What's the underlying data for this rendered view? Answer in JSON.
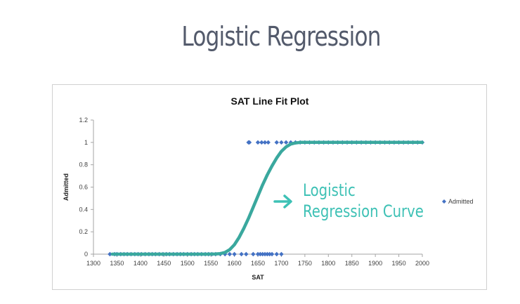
{
  "slide": {
    "title": "Logistic Regression"
  },
  "chart_data": {
    "type": "scatter",
    "title": "SAT Line Fit  Plot",
    "xlabel": "SAT",
    "ylabel": "Admitted",
    "xlim": [
      1300,
      2000
    ],
    "ylim": [
      0,
      1.2
    ],
    "xticks": [
      "1300",
      "1350",
      "1400",
      "1450",
      "1500",
      "1550",
      "1600",
      "1650",
      "1700",
      "1750",
      "1800",
      "1850",
      "1900",
      "1950",
      "2000"
    ],
    "yticks": [
      "0",
      "0.2",
      "0.4",
      "0.6",
      "0.8",
      "1",
      "1.2"
    ],
    "grid": false,
    "legend": {
      "position": "right",
      "entries": [
        "Admitted"
      ]
    },
    "series": [
      {
        "name": "Admitted",
        "kind": "points",
        "color": "#4472c4",
        "x": [
          1335,
          1345,
          1350,
          1358,
          1365,
          1372,
          1380,
          1388,
          1395,
          1402,
          1410,
          1418,
          1425,
          1432,
          1440,
          1448,
          1455,
          1462,
          1470,
          1478,
          1485,
          1492,
          1500,
          1508,
          1515,
          1522,
          1530,
          1538,
          1545,
          1552,
          1560,
          1570,
          1580,
          1590,
          1600,
          1615,
          1625,
          1640,
          1650,
          1655,
          1660,
          1665,
          1670,
          1675,
          1680,
          1690,
          1700,
          1630,
          1632,
          1650,
          1658,
          1665,
          1672,
          1690,
          1700,
          1710,
          1720,
          1730,
          1740,
          1750,
          1760,
          1770,
          1780,
          1790,
          1800,
          1810,
          1820,
          1830,
          1840,
          1850,
          1860,
          1870,
          1880,
          1890,
          1900,
          1910,
          1920,
          1930,
          1940,
          1950,
          1960,
          1970,
          1980,
          1990,
          2000
        ],
        "y": [
          0,
          0,
          0,
          0,
          0,
          0,
          0,
          0,
          0,
          0,
          0,
          0,
          0,
          0,
          0,
          0,
          0,
          0,
          0,
          0,
          0,
          0,
          0,
          0,
          0,
          0,
          0,
          0,
          0,
          0,
          0,
          0,
          0,
          0,
          0,
          0,
          0,
          0,
          0,
          0,
          0,
          0,
          0,
          0,
          0,
          0,
          0,
          1,
          1,
          1,
          1,
          1,
          1,
          1,
          1,
          1,
          1,
          1,
          1,
          1,
          1,
          1,
          1,
          1,
          1,
          1,
          1,
          1,
          1,
          1,
          1,
          1,
          1,
          1,
          1,
          1,
          1,
          1,
          1,
          1,
          1,
          1,
          1,
          1,
          1
        ]
      },
      {
        "name": "",
        "kind": "curve",
        "color": "#3aa89e",
        "x": [
          1340,
          1400,
          1450,
          1500,
          1540,
          1560,
          1570,
          1580,
          1590,
          1600,
          1610,
          1620,
          1630,
          1640,
          1650,
          1660,
          1670,
          1680,
          1690,
          1700,
          1710,
          1720,
          1730,
          1740,
          1760,
          1800,
          1900,
          2000
        ],
        "y": [
          0,
          0,
          0,
          0,
          0,
          0.001,
          0.005,
          0.015,
          0.04,
          0.085,
          0.15,
          0.23,
          0.32,
          0.42,
          0.52,
          0.62,
          0.71,
          0.79,
          0.86,
          0.92,
          0.96,
          0.985,
          0.995,
          1,
          1,
          1,
          1,
          1
        ]
      }
    ],
    "annotation": {
      "line1": "Logistic",
      "line2": "Regression Curve",
      "color": "#3ec1b5"
    }
  }
}
